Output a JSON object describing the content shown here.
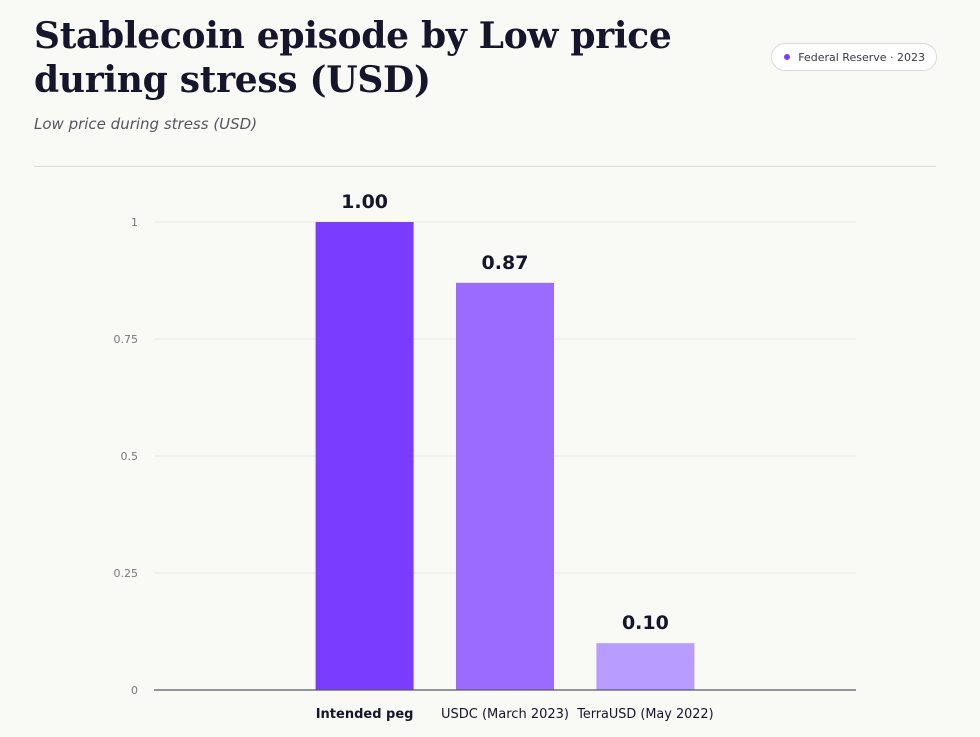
{
  "header": {
    "title": "Stablecoin episode by Low price during stress (USD)",
    "subtitle": "Low price during stress (USD)",
    "source_badge": "Federal Reserve · 2023"
  },
  "colors": {
    "accent": "#7a3cff",
    "bars": [
      "#7a3cff",
      "#9b6bff",
      "#b99cff"
    ]
  },
  "chart_data": {
    "type": "bar",
    "title": "Stablecoin episode by Low price during stress (USD)",
    "subtitle": "Low price during stress (USD)",
    "xlabel": "",
    "ylabel": "",
    "categories": [
      "Intended peg",
      "USDC (March 2023)",
      "TerraUSD (May 2022)"
    ],
    "values": [
      1.0,
      0.87,
      0.1
    ],
    "value_labels": [
      "1.00",
      "0.87",
      "0.10"
    ],
    "ylim": [
      0,
      1
    ],
    "yticks": [
      0,
      0.25,
      0.5,
      0.75,
      1
    ],
    "ytick_labels": [
      "0",
      "0.25",
      "0.5",
      "0.75",
      "1"
    ],
    "grid": true,
    "legend": "none"
  }
}
